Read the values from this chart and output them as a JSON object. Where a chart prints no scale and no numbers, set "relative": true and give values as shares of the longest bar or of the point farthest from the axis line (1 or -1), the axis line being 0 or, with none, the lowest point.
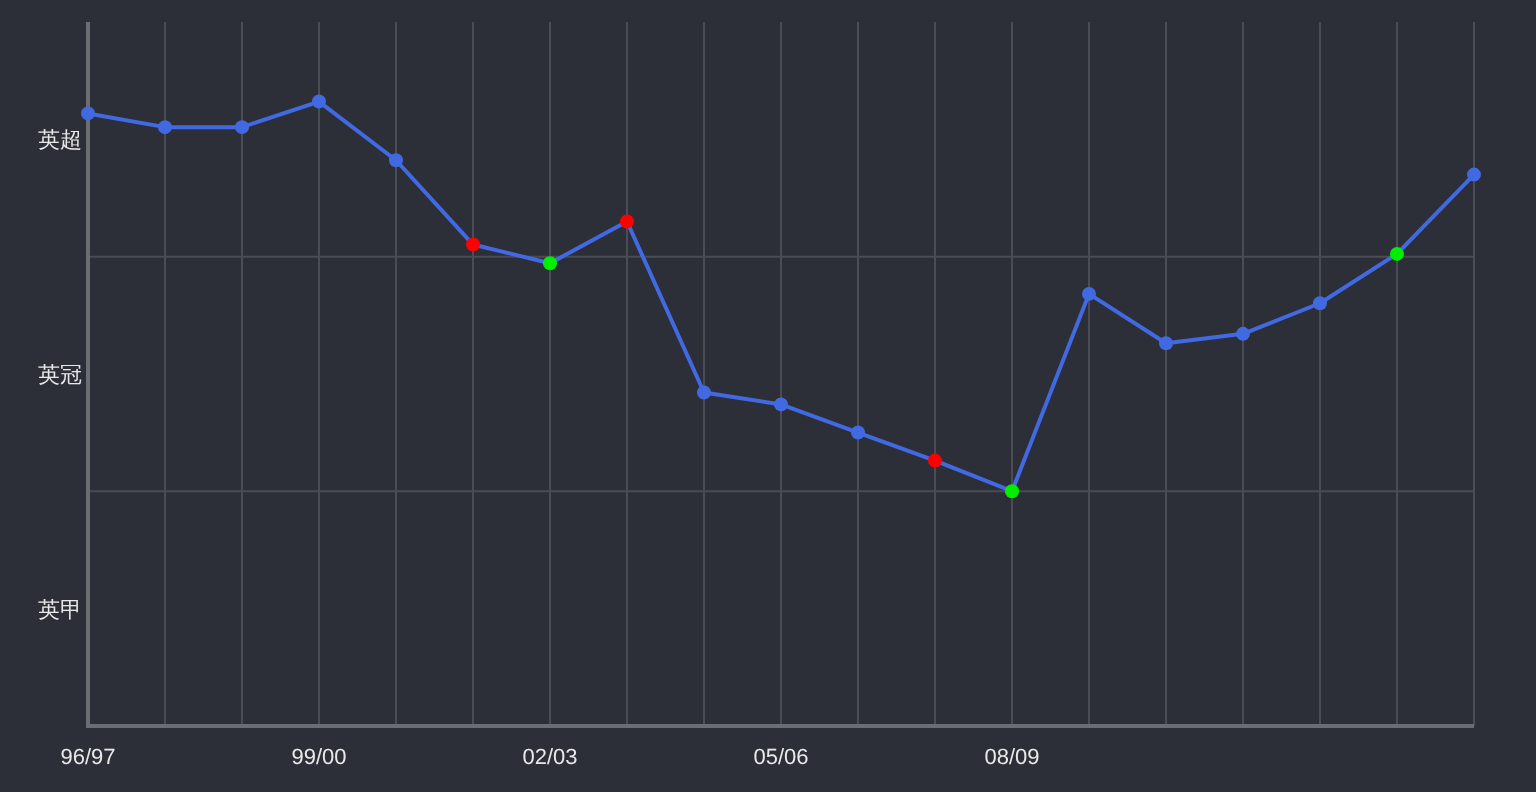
{
  "chart_data": {
    "type": "line",
    "relative": true,
    "categories": [
      "96/97",
      null,
      null,
      "99/00",
      null,
      null,
      "02/03",
      null,
      null,
      "05/06",
      null,
      null,
      "08/09",
      null,
      null,
      null,
      null,
      null,
      null
    ],
    "series": [
      {
        "color": "#4169e1",
        "colors": [
          "#4169e1",
          "#4169e1",
          "#4169e1",
          "#4169e1",
          "#4169e1",
          "#ff0000",
          "#00ee00",
          "#ff0000",
          "#4169e1",
          "#4169e1",
          "#4169e1",
          "#ff0000",
          "#00ee00",
          "#4169e1",
          "#4169e1",
          "#4169e1",
          "#4169e1",
          "#00ee00",
          "#4169e1"
        ],
        "values": [
          0.981,
          0.959,
          0.959,
          1,
          0.906,
          0.771,
          0.741,
          0.808,
          0.534,
          0.515,
          0.47,
          0.425,
          0.376,
          0.692,
          0.613,
          0.628,
          0.677,
          0.756,
          0.883
        ]
      }
    ],
    "annotations": [
      "英超",
      "英冠",
      "英甲"
    ],
    "grid": true,
    "marker": "circle",
    "line_style": "solid"
  }
}
